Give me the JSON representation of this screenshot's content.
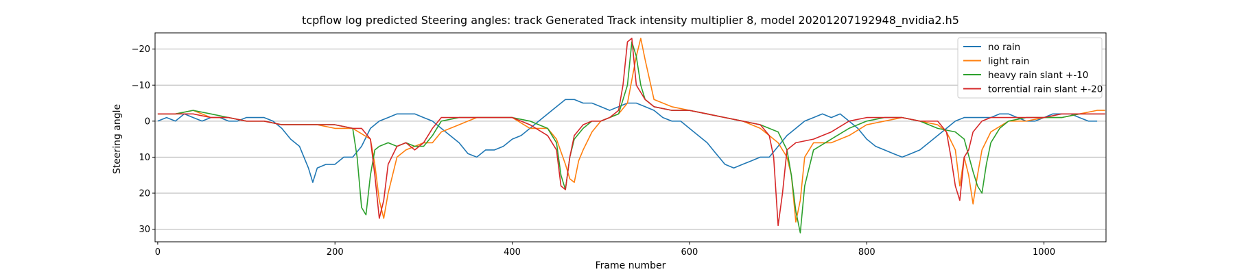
{
  "chart_data": {
    "type": "line",
    "title": "tcpflow log predicted Steering angles: track Generated Track intensity multiplier 8, model 20201207192948_nvidia2.h5",
    "xlabel": "Frame number",
    "ylabel": "Steering angle",
    "xlim": [
      -3,
      1070
    ],
    "ylim": [
      33.5,
      -24.5
    ],
    "y_inverted": true,
    "xticks": [
      0,
      200,
      400,
      600,
      800,
      1000
    ],
    "xtick_labels": [
      "0",
      "200",
      "400",
      "600",
      "800",
      "1000"
    ],
    "yticks": [
      -20,
      -10,
      0,
      10,
      20,
      30
    ],
    "ytick_labels": [
      "−20",
      "−10",
      "0",
      "10",
      "20",
      "30"
    ],
    "grid": "horizontal",
    "legend_position": "top-right",
    "series": [
      {
        "name": "no rain",
        "color": "#1f77b4",
        "x": [
          0,
          10,
          20,
          30,
          40,
          50,
          60,
          70,
          80,
          90,
          100,
          110,
          120,
          130,
          140,
          150,
          160,
          165,
          170,
          175,
          180,
          190,
          200,
          210,
          220,
          230,
          240,
          250,
          260,
          270,
          280,
          290,
          300,
          310,
          320,
          330,
          340,
          350,
          360,
          370,
          380,
          390,
          400,
          410,
          420,
          430,
          440,
          450,
          460,
          470,
          480,
          490,
          500,
          510,
          520,
          530,
          540,
          550,
          560,
          570,
          580,
          590,
          600,
          610,
          620,
          630,
          640,
          650,
          660,
          670,
          680,
          690,
          700,
          710,
          720,
          730,
          740,
          750,
          760,
          770,
          780,
          790,
          800,
          810,
          820,
          830,
          840,
          850,
          860,
          870,
          880,
          890,
          900,
          910,
          920,
          930,
          940,
          950,
          960,
          970,
          980,
          990,
          1000,
          1010,
          1020,
          1030,
          1040,
          1050,
          1060
        ],
        "y": [
          0,
          -1,
          0,
          -2,
          -1,
          0,
          -1,
          -1,
          0,
          0,
          -1,
          -1,
          -1,
          0,
          2,
          5,
          7,
          10,
          13,
          17,
          13,
          12,
          12,
          10,
          10,
          7,
          2,
          0,
          -1,
          -2,
          -2,
          -2,
          -1,
          0,
          2,
          4,
          6,
          9,
          10,
          8,
          8,
          7,
          5,
          4,
          2,
          0,
          -2,
          -4,
          -6,
          -6,
          -5,
          -5,
          -4,
          -3,
          -4,
          -5,
          -5,
          -4,
          -3,
          -1,
          0,
          0,
          2,
          4,
          6,
          9,
          12,
          13,
          12,
          11,
          10,
          10,
          7,
          4,
          2,
          0,
          -1,
          -2,
          -1,
          -2,
          0,
          2,
          5,
          7,
          8,
          9,
          10,
          9,
          8,
          6,
          4,
          2,
          0,
          -1,
          -1,
          -1,
          -1,
          -2,
          -2,
          -1,
          0,
          0,
          -1,
          -2,
          -2,
          -2,
          -1,
          0,
          0
        ]
      },
      {
        "name": "light rain",
        "color": "#ff7f0e",
        "x": [
          0,
          20,
          40,
          60,
          80,
          100,
          120,
          140,
          160,
          180,
          200,
          220,
          240,
          245,
          250,
          255,
          260,
          270,
          280,
          290,
          300,
          310,
          320,
          330,
          340,
          350,
          360,
          380,
          400,
          420,
          440,
          450,
          460,
          465,
          470,
          475,
          480,
          490,
          500,
          520,
          530,
          540,
          545,
          550,
          560,
          580,
          600,
          620,
          640,
          660,
          680,
          700,
          710,
          715,
          720,
          725,
          730,
          740,
          760,
          780,
          800,
          820,
          840,
          860,
          880,
          890,
          900,
          905,
          910,
          915,
          920,
          925,
          930,
          940,
          960,
          980,
          1000,
          1020,
          1040,
          1060,
          1069
        ],
        "y": [
          -2,
          -2,
          -3,
          -1,
          -1,
          0,
          0,
          1,
          1,
          1,
          2,
          2,
          5,
          12,
          22,
          27,
          20,
          10,
          8,
          7,
          6,
          6,
          3,
          2,
          1,
          0,
          -1,
          -1,
          -1,
          2,
          2,
          5,
          12,
          16,
          17,
          11,
          8,
          3,
          0,
          -2,
          -5,
          -18,
          -23,
          -17,
          -6,
          -4,
          -3,
          -2,
          -1,
          0,
          2,
          6,
          10,
          15,
          28,
          22,
          10,
          6,
          6,
          4,
          1,
          0,
          -1,
          0,
          1,
          3,
          8,
          18,
          10,
          15,
          23,
          15,
          8,
          3,
          0,
          0,
          -1,
          -1,
          -2,
          -3,
          -3
        ]
      },
      {
        "name": "heavy rain slant +-10",
        "color": "#2ca02c",
        "x": [
          0,
          20,
          40,
          60,
          80,
          100,
          120,
          140,
          160,
          180,
          200,
          220,
          225,
          230,
          235,
          240,
          245,
          250,
          260,
          270,
          280,
          290,
          300,
          310,
          320,
          340,
          360,
          380,
          400,
          420,
          440,
          450,
          455,
          460,
          465,
          470,
          480,
          490,
          500,
          520,
          530,
          535,
          540,
          545,
          550,
          560,
          580,
          600,
          620,
          640,
          660,
          680,
          700,
          710,
          715,
          720,
          725,
          730,
          740,
          760,
          780,
          800,
          820,
          840,
          860,
          880,
          900,
          910,
          920,
          925,
          930,
          935,
          940,
          950,
          960,
          980,
          1000,
          1020,
          1040,
          1060,
          1069
        ],
        "y": [
          -2,
          -2,
          -3,
          -2,
          -1,
          0,
          0,
          1,
          1,
          1,
          1,
          2,
          10,
          24,
          26,
          15,
          8,
          7,
          6,
          7,
          6,
          7,
          7,
          4,
          0,
          -1,
          -1,
          -1,
          -1,
          0,
          2,
          6,
          15,
          19,
          10,
          5,
          2,
          0,
          0,
          -2,
          -10,
          -22,
          -18,
          -10,
          -6,
          -4,
          -3,
          -3,
          -2,
          -1,
          0,
          1,
          3,
          8,
          15,
          25,
          31,
          18,
          8,
          5,
          2,
          0,
          -1,
          -1,
          0,
          2,
          3,
          5,
          14,
          18,
          20,
          12,
          6,
          2,
          0,
          -1,
          -1,
          -1,
          -2,
          -2,
          -2
        ]
      },
      {
        "name": "torrential rain slant +-20",
        "color": "#d62728",
        "x": [
          0,
          20,
          40,
          60,
          80,
          100,
          120,
          140,
          160,
          180,
          200,
          220,
          230,
          240,
          245,
          250,
          255,
          260,
          270,
          280,
          290,
          300,
          310,
          320,
          340,
          360,
          380,
          400,
          420,
          440,
          450,
          455,
          460,
          465,
          470,
          480,
          490,
          500,
          510,
          520,
          525,
          530,
          535,
          540,
          550,
          560,
          580,
          600,
          620,
          640,
          660,
          680,
          690,
          695,
          700,
          705,
          710,
          720,
          740,
          760,
          780,
          800,
          820,
          840,
          860,
          880,
          890,
          895,
          900,
          905,
          910,
          915,
          920,
          930,
          940,
          960,
          980,
          1000,
          1020,
          1040,
          1060,
          1069
        ],
        "y": [
          -2,
          -2,
          -2,
          -1,
          -1,
          0,
          0,
          1,
          1,
          1,
          1,
          2,
          2,
          5,
          15,
          27,
          22,
          12,
          7,
          6,
          8,
          6,
          2,
          -1,
          -1,
          -1,
          -1,
          -1,
          1,
          4,
          8,
          18,
          19,
          10,
          4,
          1,
          0,
          0,
          -1,
          -3,
          -10,
          -22,
          -23,
          -10,
          -6,
          -4,
          -3,
          -3,
          -2,
          -1,
          0,
          1,
          4,
          10,
          29,
          20,
          8,
          6,
          5,
          3,
          0,
          -1,
          -1,
          -1,
          0,
          0,
          3,
          10,
          18,
          22,
          10,
          8,
          3,
          0,
          -1,
          -1,
          -1,
          -1,
          -2,
          -2,
          -2,
          -2
        ]
      }
    ]
  }
}
